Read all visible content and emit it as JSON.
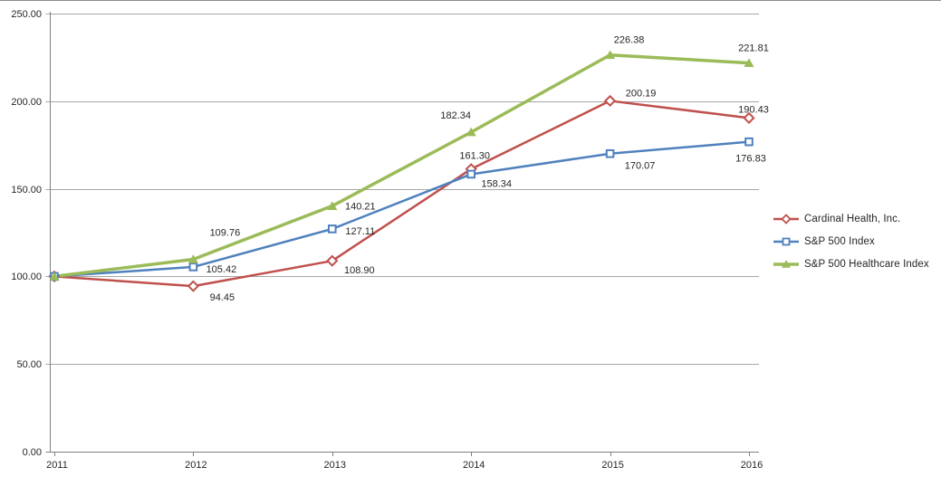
{
  "chart_data": {
    "type": "line",
    "title": "",
    "x_labels": [
      "2011",
      "2012",
      "2013",
      "2014",
      "2015",
      "2016"
    ],
    "y_axis": {
      "min": 0,
      "max": 250,
      "step": 50,
      "tick_labels": [
        "0.00",
        "50.00",
        "100.00",
        "150.00",
        "200.00",
        "250.00"
      ]
    },
    "grid": true,
    "legend_position": "right",
    "colors": {
      "axis": "#808080",
      "gridline": "#a6a6a6",
      "label_text": "#262626"
    },
    "series": [
      {
        "name": "Cardinal Health, Inc.",
        "color": "#C0504D",
        "marker": "diamond",
        "values": [
          100.0,
          94.45,
          108.9,
          161.3,
          200.19,
          190.43
        ],
        "point_labels": [
          null,
          "94.45",
          "108.90",
          "161.30",
          "200.19",
          "190.43"
        ]
      },
      {
        "name": "S&P 500 Index",
        "color": "#4F81BD",
        "marker": "square",
        "values": [
          100.0,
          105.42,
          127.11,
          158.34,
          170.07,
          176.83
        ],
        "point_labels": [
          null,
          "105.42",
          "127.11",
          "158.34",
          "170.07",
          "176.83"
        ]
      },
      {
        "name": "S&P 500 Healthcare Index",
        "color": "#9BBB59",
        "marker": "triangle",
        "values": [
          100.0,
          109.76,
          140.21,
          182.34,
          226.38,
          221.81
        ],
        "point_labels": [
          null,
          "109.76",
          "140.21",
          "182.34",
          "226.38",
          "221.81"
        ]
      }
    ]
  }
}
